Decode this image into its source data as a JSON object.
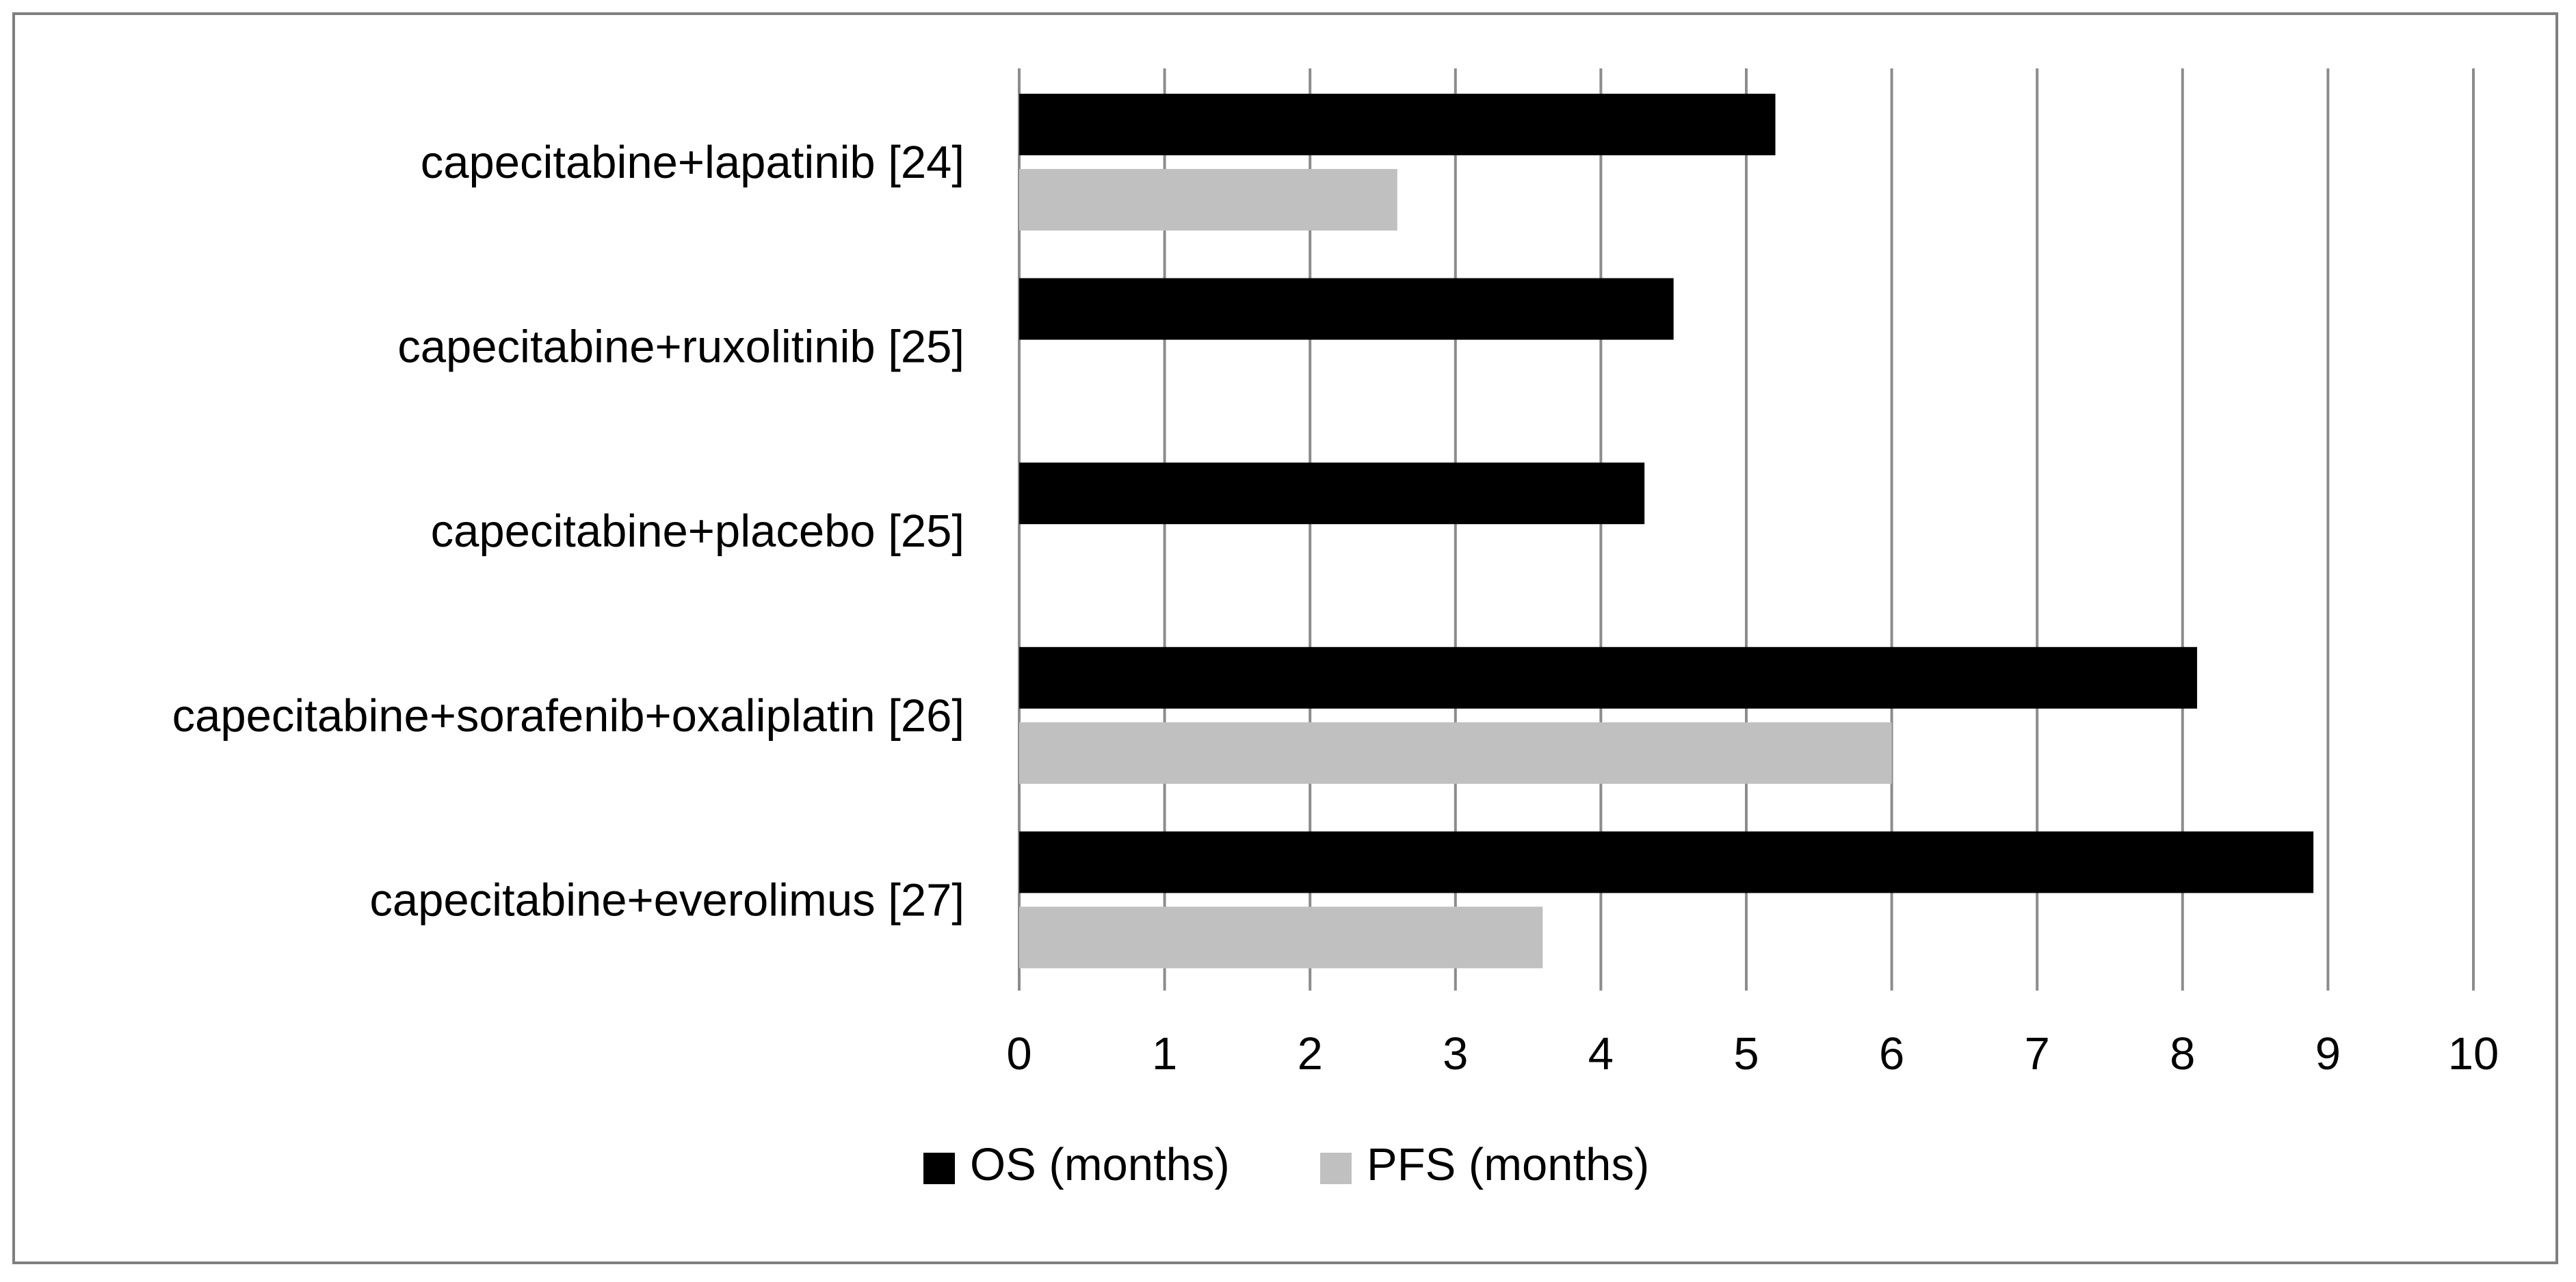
{
  "chart_data": {
    "type": "bar",
    "orientation": "horizontal",
    "categories": [
      "capecitabine+lapatinib [24]",
      "capecitabine+ruxolitinib [25]",
      "capecitabine+placebo [25]",
      "capecitabine+sorafenib+oxaliplatin [26]",
      "capecitabine+everolimus [27]"
    ],
    "series": [
      {
        "name": "OS (months)",
        "color": "#000000",
        "values": [
          5.2,
          4.5,
          4.3,
          8.1,
          8.9
        ]
      },
      {
        "name": "PFS (months)",
        "color": "#c0c0c0",
        "values": [
          2.6,
          null,
          null,
          6.0,
          3.6
        ]
      }
    ],
    "x_ticks": [
      "0",
      "1",
      "2",
      "3",
      "4",
      "5",
      "6",
      "7",
      "8",
      "9",
      "10"
    ],
    "xlim": [
      0,
      10
    ],
    "grid": "vertical",
    "legend_position": "bottom",
    "title": "",
    "xlabel": "",
    "ylabel": ""
  }
}
